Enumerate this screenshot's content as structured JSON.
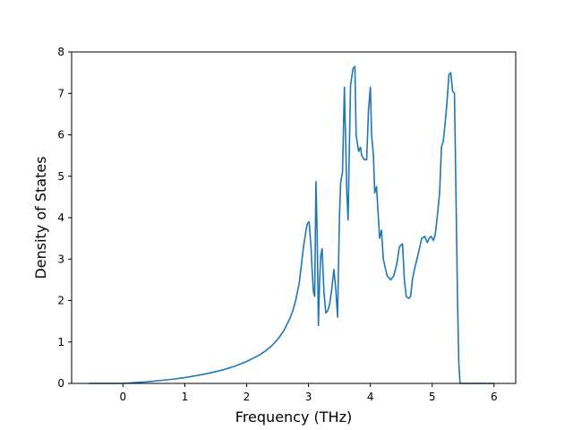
{
  "chart_data": {
    "type": "line",
    "title": "",
    "xlabel": "Frequency (THz)",
    "ylabel": "Density of States",
    "xlim": [
      -0.83,
      6.35
    ],
    "ylim": [
      0,
      8
    ],
    "xticks": [
      0,
      1,
      2,
      3,
      4,
      5,
      6
    ],
    "yticks": [
      0,
      1,
      2,
      3,
      4,
      5,
      6,
      7,
      8
    ],
    "grid": false,
    "legend": "none",
    "series": [
      {
        "color": "#1f77b4",
        "x": [
          -0.55,
          0.0,
          0.2,
          0.4,
          0.6,
          0.8,
          1.0,
          1.2,
          1.4,
          1.6,
          1.8,
          2.0,
          2.2,
          2.3,
          2.4,
          2.5,
          2.6,
          2.7,
          2.75,
          2.8,
          2.85,
          2.88,
          2.92,
          2.96,
          2.98,
          3.01,
          3.04,
          3.06,
          3.08,
          3.1,
          3.12,
          3.14,
          3.16,
          3.18,
          3.2,
          3.22,
          3.25,
          3.28,
          3.31,
          3.34,
          3.37,
          3.41,
          3.44,
          3.47,
          3.5,
          3.52,
          3.55,
          3.58,
          3.62,
          3.64,
          3.66,
          3.68,
          3.7,
          3.72,
          3.75,
          3.77,
          3.79,
          3.81,
          3.84,
          3.86,
          3.88,
          3.9,
          3.94,
          3.97,
          4.0,
          4.02,
          4.05,
          4.07,
          4.1,
          4.13,
          4.15,
          4.18,
          4.21,
          4.24,
          4.27,
          4.3,
          4.33,
          4.38,
          4.43,
          4.47,
          4.52,
          4.55,
          4.58,
          4.62,
          4.65,
          4.68,
          4.72,
          4.77,
          4.83,
          4.88,
          4.92,
          4.95,
          4.98,
          5.02,
          5.05,
          5.08,
          5.12,
          5.15,
          5.18,
          5.21,
          5.24,
          5.27,
          5.3,
          5.33,
          5.36,
          5.39,
          5.41,
          5.43,
          5.45,
          5.47,
          5.5,
          5.55,
          6.0
        ],
        "y": [
          0.0,
          0.0,
          0.02,
          0.04,
          0.07,
          0.1,
          0.14,
          0.19,
          0.25,
          0.32,
          0.41,
          0.53,
          0.68,
          0.78,
          0.9,
          1.06,
          1.27,
          1.57,
          1.77,
          2.05,
          2.42,
          2.8,
          3.3,
          3.7,
          3.85,
          3.9,
          3.3,
          2.7,
          2.2,
          2.1,
          4.87,
          3.6,
          1.4,
          2.5,
          3.1,
          3.25,
          2.2,
          1.7,
          1.75,
          1.9,
          2.2,
          2.75,
          2.3,
          1.6,
          4.0,
          4.85,
          5.1,
          7.15,
          4.6,
          3.95,
          5.6,
          7.2,
          7.4,
          7.6,
          7.65,
          6.0,
          5.8,
          5.6,
          5.7,
          5.5,
          5.45,
          5.4,
          5.4,
          6.6,
          7.15,
          6.0,
          5.5,
          4.6,
          4.75,
          4.0,
          3.5,
          3.7,
          3.0,
          2.8,
          2.6,
          2.55,
          2.5,
          2.6,
          2.9,
          3.3,
          3.37,
          2.5,
          2.1,
          2.05,
          2.1,
          2.5,
          2.8,
          3.1,
          3.5,
          3.55,
          3.4,
          3.5,
          3.55,
          3.45,
          3.6,
          4.0,
          4.6,
          5.7,
          5.85,
          6.3,
          6.8,
          7.45,
          7.5,
          7.05,
          7.0,
          4.0,
          2.0,
          0.5,
          0.0,
          0.0,
          0.0,
          0.0,
          0.0
        ]
      }
    ]
  }
}
